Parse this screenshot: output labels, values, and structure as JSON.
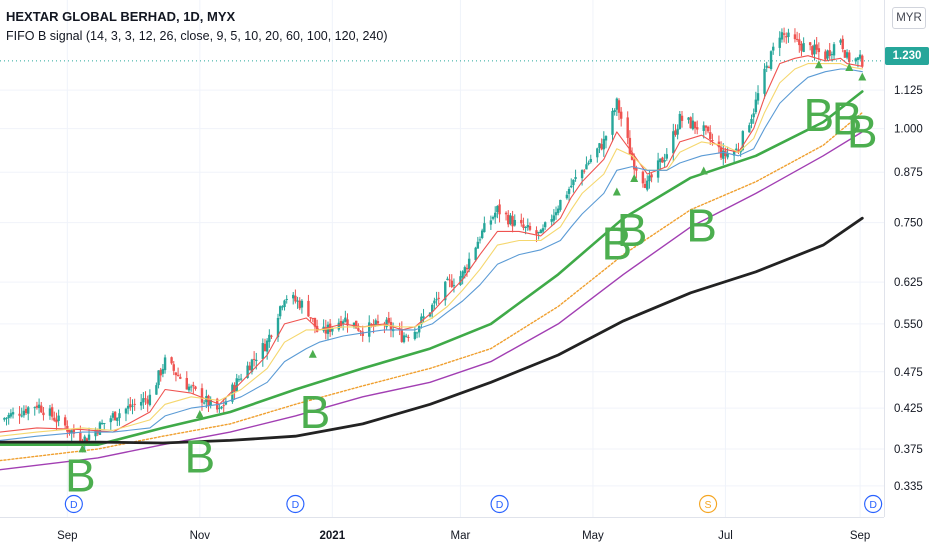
{
  "header": {
    "symbol_title": "HEXTAR GLOBAL BERHAD, 1D, MYX",
    "indicator_label": "FIFO B signal (14, 3, 3, 12, 26, close, 9, 5, 10, 20, 60, 100, 120, 240)",
    "currency": "MYR",
    "last_price": "1.230"
  },
  "colors": {
    "up_candle": "#26a69a",
    "down_candle": "#ef5350",
    "ma_fast": "#ef5350",
    "ma_yellow": "#f5d76e",
    "ma_blue": "#5b9bd5",
    "ma_green": "#3faa48",
    "ma_orange": "#f0a030",
    "ma_purple": "#a23fb3",
    "ma_black": "#222222",
    "signal": "#4cae4f",
    "event_dividend": "#2962ff",
    "event_split": "#f5a623"
  },
  "chart_data": {
    "type": "line",
    "y_scale": "log",
    "ylim": [
      0.315,
      1.42
    ],
    "y_ticks": [
      "1.125",
      "1.000",
      "0.875",
      "0.750",
      "0.625",
      "0.550",
      "0.475",
      "0.425",
      "0.375",
      "0.335"
    ],
    "x_labels": [
      "Sep",
      "Nov",
      "2021",
      "Mar",
      "May",
      "Jul",
      "Sep"
    ],
    "x_label_dates": [
      "2020-09-01",
      "2020-11-01",
      "2021-01-01",
      "2021-03-01",
      "2021-05-01",
      "2021-07-01",
      "2021-09-01"
    ],
    "x_range": [
      "2020-08-01",
      "2021-09-12"
    ],
    "price_anchors": {
      "dates": [
        "2020-08-01",
        "2020-08-18",
        "2020-09-08",
        "2020-09-22",
        "2020-10-09",
        "2020-10-16",
        "2020-10-28",
        "2020-11-10",
        "2020-11-20",
        "2020-12-02",
        "2020-12-10",
        "2020-12-20",
        "2020-12-26",
        "2021-01-06",
        "2021-01-15",
        "2021-01-25",
        "2021-02-02",
        "2021-02-08",
        "2021-02-16",
        "2021-02-23",
        "2021-03-02",
        "2021-03-10",
        "2021-03-18",
        "2021-03-28",
        "2021-04-07",
        "2021-04-16",
        "2021-04-21",
        "2021-04-26",
        "2021-05-06",
        "2021-05-12",
        "2021-05-19",
        "2021-05-26",
        "2021-06-04",
        "2021-06-10",
        "2021-06-20",
        "2021-06-30",
        "2021-07-07",
        "2021-07-14",
        "2021-07-19",
        "2021-07-26",
        "2021-08-02",
        "2021-08-08",
        "2021-08-16",
        "2021-08-23",
        "2021-08-26",
        "2021-09-02"
      ],
      "close": [
        0.41,
        0.43,
        0.385,
        0.415,
        0.44,
        0.49,
        0.45,
        0.42,
        0.47,
        0.52,
        0.6,
        0.58,
        0.53,
        0.56,
        0.54,
        0.55,
        0.53,
        0.54,
        0.58,
        0.62,
        0.64,
        0.72,
        0.78,
        0.74,
        0.72,
        0.8,
        0.84,
        0.88,
        0.96,
        1.08,
        0.91,
        0.84,
        0.93,
        1.03,
        1.0,
        0.92,
        0.94,
        1.06,
        1.18,
        1.34,
        1.3,
        1.28,
        1.25,
        1.32,
        1.24,
        1.23
      ]
    },
    "series": [
      {
        "values": [
          0.395,
          0.4,
          0.398,
          0.395,
          0.42,
          0.45,
          0.445,
          0.43,
          0.46,
          0.5,
          0.55,
          0.56,
          0.54,
          0.55,
          0.545,
          0.55,
          0.54,
          0.545,
          0.57,
          0.6,
          0.63,
          0.68,
          0.73,
          0.73,
          0.72,
          0.76,
          0.81,
          0.85,
          0.91,
          0.99,
          0.93,
          0.87,
          0.89,
          0.96,
          0.98,
          0.94,
          0.93,
          1.0,
          1.1,
          1.22,
          1.24,
          1.25,
          1.23,
          1.24,
          1.22,
          1.21
        ]
      },
      {
        "values": [
          0.39,
          0.395,
          0.4,
          0.397,
          0.41,
          0.43,
          0.44,
          0.435,
          0.45,
          0.48,
          0.52,
          0.54,
          0.54,
          0.545,
          0.545,
          0.548,
          0.545,
          0.545,
          0.56,
          0.58,
          0.61,
          0.65,
          0.7,
          0.71,
          0.71,
          0.74,
          0.78,
          0.82,
          0.87,
          0.94,
          0.92,
          0.88,
          0.88,
          0.93,
          0.96,
          0.95,
          0.93,
          0.97,
          1.05,
          1.15,
          1.2,
          1.22,
          1.22,
          1.22,
          1.21,
          1.2
        ]
      },
      {
        "values": [
          0.385,
          0.39,
          0.395,
          0.395,
          0.4,
          0.415,
          0.425,
          0.43,
          0.44,
          0.46,
          0.49,
          0.51,
          0.52,
          0.53,
          0.535,
          0.54,
          0.54,
          0.54,
          0.55,
          0.57,
          0.59,
          0.62,
          0.66,
          0.68,
          0.69,
          0.71,
          0.74,
          0.77,
          0.82,
          0.88,
          0.89,
          0.88,
          0.88,
          0.9,
          0.92,
          0.93,
          0.92,
          0.94,
          1.0,
          1.08,
          1.13,
          1.17,
          1.19,
          1.2,
          1.2,
          1.19
        ]
      },
      {
        "dates": [
          "2020-08-01",
          "2020-09-15",
          "2020-10-15",
          "2020-11-15",
          "2020-12-15",
          "2021-01-15",
          "2021-02-15",
          "2021-03-15",
          "2021-04-15",
          "2021-05-15",
          "2021-06-15",
          "2021-07-15",
          "2021-08-15",
          "2021-09-02"
        ],
        "values": [
          0.38,
          0.38,
          0.4,
          0.42,
          0.45,
          0.48,
          0.51,
          0.55,
          0.64,
          0.76,
          0.86,
          0.92,
          1.02,
          1.12
        ]
      },
      {
        "dates": [
          "2020-08-01",
          "2020-09-15",
          "2020-10-15",
          "2020-11-15",
          "2020-12-15",
          "2021-01-15",
          "2021-02-15",
          "2021-03-15",
          "2021-04-15",
          "2021-05-15",
          "2021-06-15",
          "2021-07-15",
          "2021-08-15",
          "2021-09-02"
        ],
        "values": [
          0.362,
          0.375,
          0.39,
          0.405,
          0.43,
          0.455,
          0.48,
          0.51,
          0.58,
          0.68,
          0.78,
          0.85,
          0.95,
          1.05
        ]
      },
      {
        "dates": [
          "2020-08-01",
          "2020-09-15",
          "2020-10-15",
          "2020-11-15",
          "2020-12-15",
          "2021-01-15",
          "2021-02-15",
          "2021-03-15",
          "2021-04-15",
          "2021-05-15",
          "2021-06-15",
          "2021-07-15",
          "2021-08-15",
          "2021-09-02"
        ],
        "values": [
          0.352,
          0.365,
          0.38,
          0.395,
          0.415,
          0.44,
          0.46,
          0.49,
          0.55,
          0.64,
          0.74,
          0.82,
          0.92,
          0.99
        ]
      },
      {
        "dates": [
          "2020-08-01",
          "2020-09-15",
          "2020-10-15",
          "2020-11-15",
          "2020-12-15",
          "2021-01-15",
          "2021-02-15",
          "2021-03-15",
          "2021-04-15",
          "2021-05-15",
          "2021-06-15",
          "2021-07-15",
          "2021-08-15",
          "2021-09-02"
        ],
        "values": [
          0.383,
          0.383,
          0.382,
          0.385,
          0.39,
          0.405,
          0.43,
          0.46,
          0.5,
          0.555,
          0.605,
          0.645,
          0.7,
          0.76
        ]
      }
    ],
    "buy_triangles": [
      {
        "date": "2020-09-08",
        "price": 0.378
      },
      {
        "date": "2020-11-01",
        "price": 0.42
      },
      {
        "date": "2020-12-23",
        "price": 0.505
      },
      {
        "date": "2021-05-12",
        "price": 0.83
      },
      {
        "date": "2021-05-20",
        "price": 0.865
      },
      {
        "date": "2021-06-21",
        "price": 0.885
      },
      {
        "date": "2021-08-13",
        "price": 1.225
      },
      {
        "date": "2021-08-27",
        "price": 1.215
      },
      {
        "date": "2021-09-02",
        "price": 1.18
      }
    ],
    "b_letters": [
      {
        "text": "B",
        "date": "2020-09-07",
        "price": 0.342
      },
      {
        "text": "B",
        "date": "2020-11-01",
        "price": 0.362
      },
      {
        "text": "B",
        "date": "2020-12-24",
        "price": 0.415
      },
      {
        "text": "B",
        "date": "2021-05-12",
        "price": 0.695
      },
      {
        "text": "B",
        "date": "2021-05-19",
        "price": 0.725
      },
      {
        "text": "B",
        "date": "2021-06-20",
        "price": 0.735
      },
      {
        "text": "B",
        "date": "2021-08-13",
        "price": 1.03
      },
      {
        "text": "B",
        "date": "2021-08-26",
        "price": 1.02
      },
      {
        "text": "B",
        "date": "2021-09-02",
        "price": 0.98
      }
    ],
    "events": [
      {
        "label": "D",
        "date": "2020-09-04"
      },
      {
        "label": "D",
        "date": "2020-12-15"
      },
      {
        "label": "D",
        "date": "2021-03-19"
      },
      {
        "label": "S",
        "date": "2021-06-23"
      },
      {
        "label": "D",
        "date": "2021-09-07"
      }
    ],
    "last_price_value": 1.23
  }
}
